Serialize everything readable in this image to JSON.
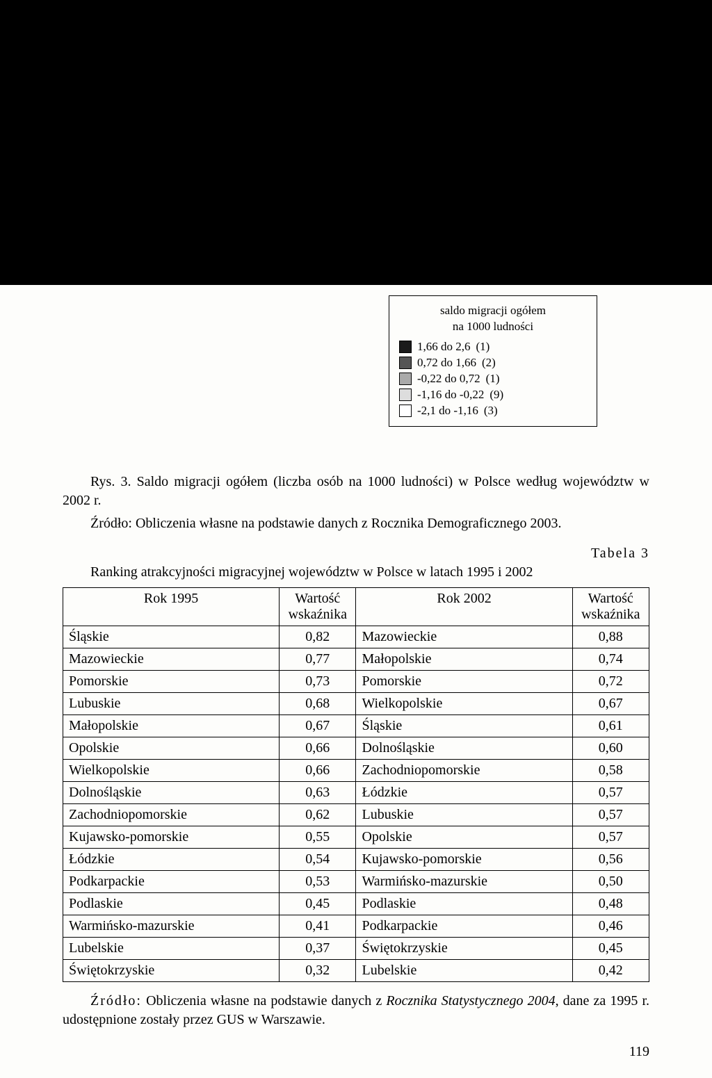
{
  "legend": {
    "title_line1": "saldo migracji ogółem",
    "title_line2": "na 1000 ludności",
    "items": [
      {
        "label": "1,66 do 2,6",
        "count": "(1)",
        "color": "#1a1a1a"
      },
      {
        "label": "0,72 do 1,66",
        "count": "(2)",
        "color": "#555555"
      },
      {
        "label": "-0,22 do 0,72",
        "count": "(1)",
        "color": "#aaaaaa"
      },
      {
        "label": "-1,16 do -0,22",
        "count": "(9)",
        "color": "#dddddd"
      },
      {
        "label": "-2,1 do -1,16",
        "count": "(3)",
        "color": "#ffffff"
      }
    ]
  },
  "figure": {
    "prefix": "Rys. 3.",
    "text": "Saldo migracji ogółem (liczba osób na 1000 ludności) w Polsce według województw w 2002 r."
  },
  "figure_source": "Źródło: Obliczenia własne na podstawie danych z Rocznika Demograficznego 2003.",
  "table_label": "Tabela 3",
  "table_title": "Ranking atrakcyjności migracyjnej województw w Polsce w latach 1995 i 2002",
  "table": {
    "headers": {
      "col1": "Rok 1995",
      "col2": "Wartość wskaźnika",
      "col3": "Rok 2002",
      "col4": "Wartość wskaźnika"
    },
    "rows": [
      [
        "Śląskie",
        "0,82",
        "Mazowieckie",
        "0,88"
      ],
      [
        "Mazowieckie",
        "0,77",
        "Małopolskie",
        "0,74"
      ],
      [
        "Pomorskie",
        "0,73",
        "Pomorskie",
        "0,72"
      ],
      [
        "Lubuskie",
        "0,68",
        "Wielkopolskie",
        "0,67"
      ],
      [
        "Małopolskie",
        "0,67",
        "Śląskie",
        "0,61"
      ],
      [
        "Opolskie",
        "0,66",
        "Dolnośląskie",
        "0,60"
      ],
      [
        "Wielkopolskie",
        "0,66",
        "Zachodniopomorskie",
        "0,58"
      ],
      [
        "Dolnośląskie",
        "0,63",
        "Łódzkie",
        "0,57"
      ],
      [
        "Zachodniopomorskie",
        "0,62",
        "Lubuskie",
        "0,57"
      ],
      [
        "Kujawsko-pomorskie",
        "0,55",
        "Opolskie",
        "0,57"
      ],
      [
        "Łódzkie",
        "0,54",
        "Kujawsko-pomorskie",
        "0,56"
      ],
      [
        "Podkarpackie",
        "0,53",
        "Warmińsko-mazurskie",
        "0,50"
      ],
      [
        "Podlaskie",
        "0,45",
        "Podlaskie",
        "0,48"
      ],
      [
        "Warmińsko-mazurskie",
        "0,41",
        "Podkarpackie",
        "0,46"
      ],
      [
        "Lubelskie",
        "0,37",
        "Świętokrzyskie",
        "0,45"
      ],
      [
        "Świętokrzyskie",
        "0,32",
        "Lubelskie",
        "0,42"
      ]
    ]
  },
  "footnote": {
    "prefix": "Źródło:",
    "text_before_italic": " Obliczenia własne na podstawie danych z ",
    "italic": "Rocznika Statystycznego 2004",
    "text_after_italic": ", dane za 1995 r. udostępnione zostały przez GUS w Warszawie."
  },
  "page_number": "119"
}
